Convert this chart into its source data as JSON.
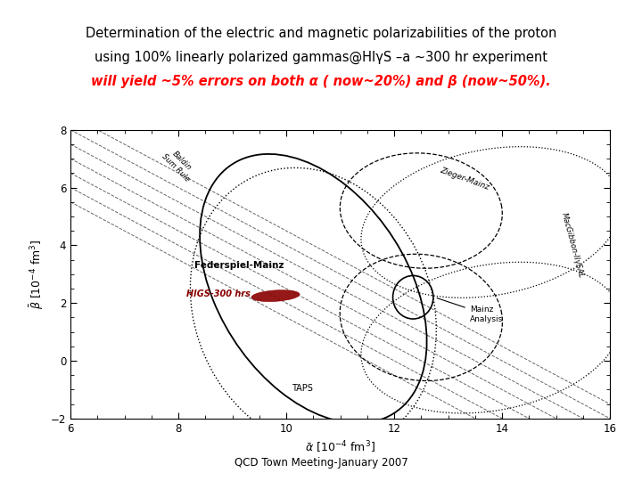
{
  "title_line1": "Determination of the electric and magnetic polarizabilities of the proton",
  "title_line2": "using 100% linearly polarized gammas@HIγS –a ~300 hr experiment",
  "title_line3": "will yield ~5% errors on both α ( now~20%) and β (now~50%).",
  "footer": "QCD Town Meeting-January 2007",
  "background_color": "#ffffff",
  "xlim": [
    6,
    16
  ],
  "ylim": [
    -2,
    8
  ],
  "xticks": [
    6,
    8,
    10,
    12,
    14,
    16
  ],
  "yticks": [
    -2,
    0,
    2,
    4,
    6,
    8
  ]
}
